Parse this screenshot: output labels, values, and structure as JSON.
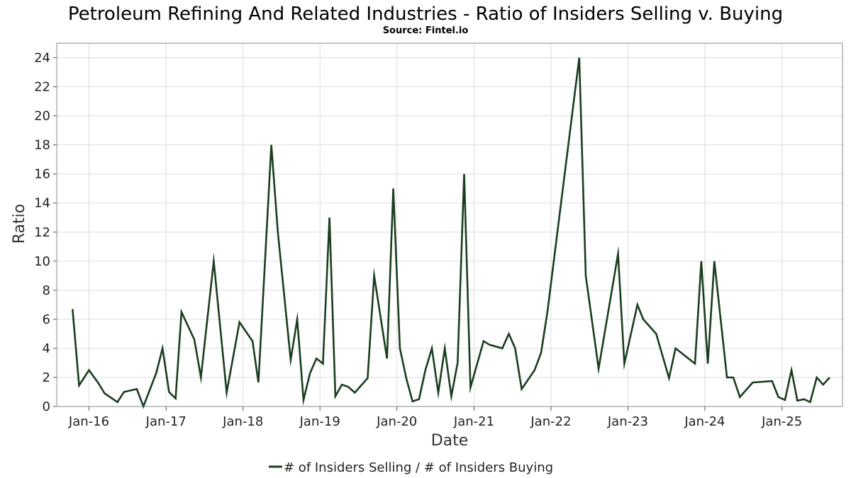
{
  "chart_data": {
    "type": "line",
    "title": "Petroleum Refining And Related Industries - Ratio of Insiders Selling v. Buying",
    "subtitle": "Source: Fintel.io",
    "xlabel": "Date",
    "ylabel": "Ratio",
    "xlim": [
      "2015-08-01",
      "2025-10-15"
    ],
    "ylim": [
      0,
      25
    ],
    "yticks": [
      0,
      2,
      4,
      6,
      8,
      10,
      12,
      14,
      16,
      18,
      20,
      22,
      24
    ],
    "xticks": [
      {
        "label": "Jan-16",
        "date": "2016-01-01"
      },
      {
        "label": "Jan-17",
        "date": "2017-01-01"
      },
      {
        "label": "Jan-18",
        "date": "2018-01-01"
      },
      {
        "label": "Jan-19",
        "date": "2019-01-01"
      },
      {
        "label": "Jan-20",
        "date": "2020-01-01"
      },
      {
        "label": "Jan-21",
        "date": "2021-01-01"
      },
      {
        "label": "Jan-22",
        "date": "2022-01-01"
      },
      {
        "label": "Jan-23",
        "date": "2023-01-01"
      },
      {
        "label": "Jan-24",
        "date": "2024-01-01"
      },
      {
        "label": "Jan-25",
        "date": "2025-01-01"
      }
    ],
    "grid": true,
    "legend_position": "bottom",
    "series": [
      {
        "name": "# of Insiders Selling / # of Insiders Buying",
        "color": "#1a3d1f",
        "points": [
          [
            "2015-10-15",
            6.7
          ],
          [
            "2015-11-15",
            1.45
          ],
          [
            "2016-01-01",
            2.5
          ],
          [
            "2016-02-15",
            1.6
          ],
          [
            "2016-03-15",
            0.9
          ],
          [
            "2016-05-15",
            0.3
          ],
          [
            "2016-06-15",
            1.0
          ],
          [
            "2016-08-15",
            1.2
          ],
          [
            "2016-09-15",
            0.0
          ],
          [
            "2016-11-15",
            2.3
          ],
          [
            "2016-12-15",
            4.0
          ],
          [
            "2017-01-15",
            1.0
          ],
          [
            "2017-02-15",
            0.55
          ],
          [
            "2017-03-15",
            6.5
          ],
          [
            "2017-05-15",
            4.6
          ],
          [
            "2017-06-15",
            2.0
          ],
          [
            "2017-08-15",
            10.0
          ],
          [
            "2017-10-15",
            0.95
          ],
          [
            "2017-12-15",
            5.8
          ],
          [
            "2018-02-15",
            4.5
          ],
          [
            "2018-03-15",
            1.65
          ],
          [
            "2018-05-15",
            18.0
          ],
          [
            "2018-06-15",
            12.0
          ],
          [
            "2018-08-15",
            3.2
          ],
          [
            "2018-09-15",
            6.0
          ],
          [
            "2018-10-15",
            0.45
          ],
          [
            "2018-11-15",
            2.3
          ],
          [
            "2018-12-15",
            3.3
          ],
          [
            "2019-01-15",
            2.95
          ],
          [
            "2019-02-15",
            13.0
          ],
          [
            "2019-03-15",
            0.7
          ],
          [
            "2019-04-15",
            1.5
          ],
          [
            "2019-05-15",
            1.35
          ],
          [
            "2019-06-15",
            0.95
          ],
          [
            "2019-08-15",
            1.95
          ],
          [
            "2019-09-15",
            9.0
          ],
          [
            "2019-11-15",
            3.3
          ],
          [
            "2019-12-15",
            15.0
          ],
          [
            "2020-01-15",
            4.0
          ],
          [
            "2020-02-15",
            1.9
          ],
          [
            "2020-03-15",
            0.35
          ],
          [
            "2020-04-15",
            0.5
          ],
          [
            "2020-05-15",
            2.5
          ],
          [
            "2020-06-15",
            4.0
          ],
          [
            "2020-07-15",
            0.95
          ],
          [
            "2020-08-15",
            4.0
          ],
          [
            "2020-09-15",
            0.7
          ],
          [
            "2020-10-15",
            3.0
          ],
          [
            "2020-11-15",
            16.0
          ],
          [
            "2020-12-15",
            1.3
          ],
          [
            "2021-02-15",
            4.5
          ],
          [
            "2021-03-15",
            4.25
          ],
          [
            "2021-05-15",
            4.0
          ],
          [
            "2021-06-15",
            5.0
          ],
          [
            "2021-07-15",
            4.0
          ],
          [
            "2021-08-15",
            1.2
          ],
          [
            "2021-10-15",
            2.5
          ],
          [
            "2021-11-15",
            3.7
          ],
          [
            "2021-12-15",
            6.5
          ],
          [
            "2022-05-15",
            24.0
          ],
          [
            "2022-06-15",
            9.0
          ],
          [
            "2022-08-15",
            2.6
          ],
          [
            "2022-11-15",
            10.5
          ],
          [
            "2022-12-15",
            2.95
          ],
          [
            "2023-02-15",
            7.0
          ],
          [
            "2023-03-15",
            6.0
          ],
          [
            "2023-05-15",
            5.0
          ],
          [
            "2023-07-15",
            1.95
          ],
          [
            "2023-08-15",
            4.0
          ],
          [
            "2023-11-15",
            2.95
          ],
          [
            "2023-12-15",
            10.0
          ],
          [
            "2024-01-15",
            2.95
          ],
          [
            "2024-02-15",
            10.0
          ],
          [
            "2024-04-15",
            2.0
          ],
          [
            "2024-05-15",
            2.0
          ],
          [
            "2024-06-15",
            0.65
          ],
          [
            "2024-08-15",
            1.65
          ],
          [
            "2024-11-15",
            1.75
          ],
          [
            "2024-12-15",
            0.65
          ],
          [
            "2025-01-15",
            0.45
          ],
          [
            "2025-02-15",
            2.5
          ],
          [
            "2025-03-15",
            0.4
          ],
          [
            "2025-04-15",
            0.5
          ],
          [
            "2025-05-15",
            0.3
          ],
          [
            "2025-06-15",
            2.0
          ],
          [
            "2025-07-15",
            1.5
          ],
          [
            "2025-08-15",
            2.0
          ]
        ]
      }
    ]
  }
}
